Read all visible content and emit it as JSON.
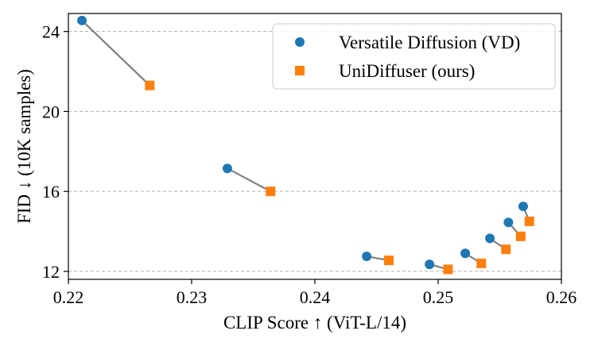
{
  "chart_data": {
    "type": "scatter",
    "title": "",
    "xlabel": "CLIP Score ↑ (ViT-L/14)",
    "ylabel": "FID ↓ (10K samples)",
    "xlim": [
      0.22,
      0.26
    ],
    "ylim": [
      11.6,
      24.9
    ],
    "xticks": [
      0.22,
      0.23,
      0.24,
      0.25,
      0.26
    ],
    "xtick_labels": [
      "0.22",
      "0.23",
      "0.24",
      "0.25",
      "0.26"
    ],
    "yticks": [
      12,
      16,
      20,
      24
    ],
    "ytick_labels": [
      "12",
      "16",
      "20",
      "24"
    ],
    "grid": "horizontal dashed",
    "legend_position": "top-right",
    "series": [
      {
        "name": "Versatile Diffusion (VD)",
        "marker": "circle",
        "color": "#1f77b4",
        "x": [
          0.2211,
          0.2329,
          0.2442,
          0.2493,
          0.2522,
          0.2542,
          0.2557,
          0.2569
        ],
        "y": [
          24.55,
          17.15,
          12.75,
          12.35,
          12.9,
          13.65,
          14.45,
          15.25
        ]
      },
      {
        "name": "UniDiffuser (ours)",
        "marker": "square",
        "color": "#ff7f0e",
        "x": [
          0.2266,
          0.2364,
          0.246,
          0.2508,
          0.2535,
          0.2555,
          0.2567,
          0.2574
        ],
        "y": [
          21.3,
          16.0,
          12.55,
          12.1,
          12.4,
          13.1,
          13.75,
          14.5
        ]
      }
    ],
    "connector_color": "#808080"
  }
}
